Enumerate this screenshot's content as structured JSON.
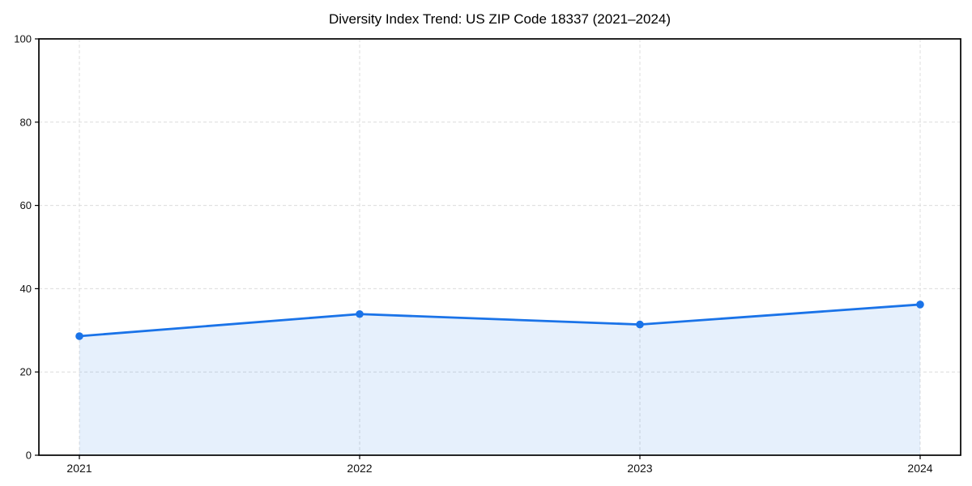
{
  "chart_data": {
    "type": "line",
    "title": "Diversity Index Trend: US ZIP Code 18337 (2021–2024)",
    "x": [
      "2021",
      "2022",
      "2023",
      "2024"
    ],
    "series": [
      {
        "name": "Diversity Index",
        "values": [
          28.6,
          33.9,
          31.4,
          36.2
        ]
      }
    ],
    "xlabel": "",
    "ylabel": "",
    "ylim": [
      0,
      100
    ],
    "yticks": [
      0,
      20,
      40,
      60,
      80,
      100
    ],
    "grid": true,
    "grid_style": "dashed",
    "legend_position": "none",
    "marker": "circle",
    "area_fill": true,
    "colors": {
      "line": "#1a73e8",
      "marker": "#1a73e8",
      "fill": "rgba(26,115,232,0.11)",
      "grid": "#dcdcdc",
      "axis": "#000000",
      "tick_label": "#1a1a1a",
      "background": "#ffffff"
    }
  }
}
